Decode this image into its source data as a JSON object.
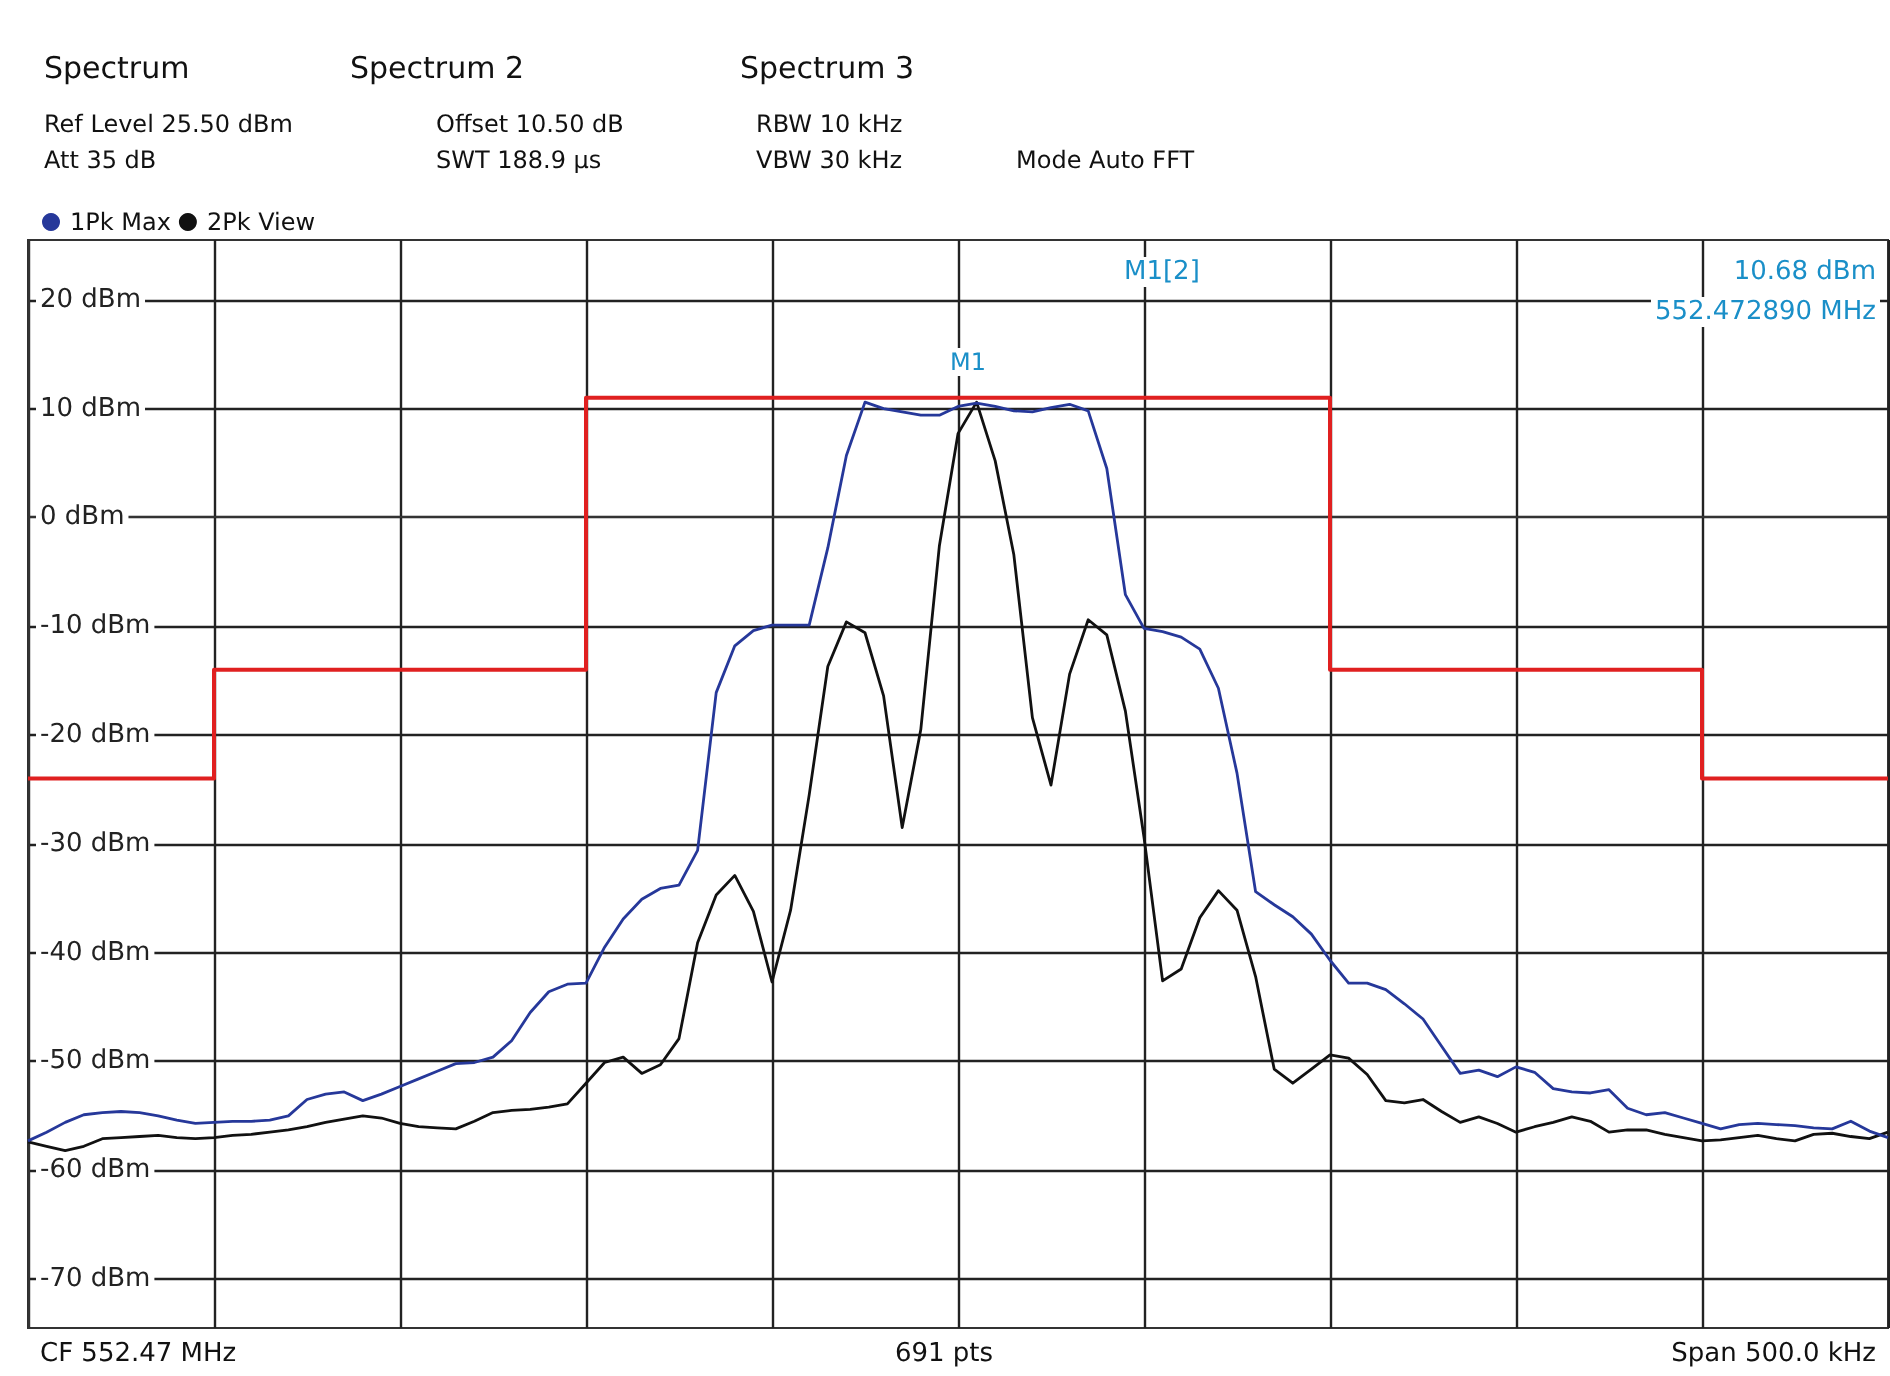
{
  "chart_data": {
    "type": "line",
    "annotations": [
      "Spectrum",
      "Spectrum 2",
      "Spectrum 3",
      "Ref Level 25.50 dBm",
      "Att 35 dB",
      "Offset 10.50 dB",
      "SWT 188.9 µs",
      "RBW 10 kHz",
      "VBW 30 kHz",
      "Mode Auto FFT",
      "M1[2]",
      "10.68 dBm",
      "552.472890 MHz",
      "CF 552.47 MHz",
      "691 pts",
      "Span 500.0 kHz",
      "M1"
    ],
    "categories": [
      null,
      null,
      null,
      null,
      null,
      null,
      null,
      null,
      null,
      null,
      null,
      null,
      null,
      null,
      null,
      null,
      null,
      null,
      null,
      null,
      null,
      null,
      null,
      null,
      null,
      null,
      null,
      null,
      null,
      null,
      null,
      null,
      null,
      null,
      null,
      null,
      null,
      null,
      null,
      null,
      null,
      null,
      null,
      null,
      null,
      null,
      null,
      null,
      null,
      null,
      null,
      null,
      null,
      null,
      null,
      null,
      null,
      null,
      null,
      null,
      null,
      null,
      null,
      null,
      null,
      null,
      null,
      null,
      null,
      null,
      null,
      null,
      null,
      null,
      null,
      null,
      null,
      null,
      null,
      null,
      null,
      null,
      null,
      null,
      null,
      null,
      null,
      null,
      null,
      null,
      null,
      null,
      null,
      null,
      null,
      null,
      null,
      null,
      null,
      null,
      null
    ],
    "ylim": [
      -74.5,
      25.5
    ],
    "yticks": [
      {
        "value": 20,
        "label": "20 dBm"
      },
      {
        "value": 10,
        "label": "10 dBm"
      },
      {
        "value": 0,
        "label": "0 dBm"
      },
      {
        "value": -10,
        "label": "-10 dBm"
      },
      {
        "value": -20,
        "label": "-20 dBm"
      },
      {
        "value": -30,
        "label": "-30 dBm"
      },
      {
        "value": -40,
        "label": "-40 dBm"
      },
      {
        "value": -50,
        "label": "-50 dBm"
      },
      {
        "value": -60,
        "label": "-60 dBm"
      },
      {
        "value": -70,
        "label": "-70 dBm"
      }
    ],
    "tick_labels": "y",
    "grid": true,
    "legend": "top left",
    "marker": "none",
    "line_style": "solid",
    "series": [
      {
        "type": "step",
        "color": "#e02020",
        "values": [
          -24,
          -24,
          -24,
          -24,
          -24,
          -24,
          -24,
          -24,
          -24,
          -24,
          -14,
          -14,
          -14,
          -14,
          -14,
          -14,
          -14,
          -14,
          -14,
          -14,
          -14,
          -14,
          -14,
          -14,
          -14,
          -14,
          -14,
          -14,
          -14,
          -14,
          11,
          11,
          11,
          11,
          11,
          11,
          11,
          11,
          11,
          11,
          11,
          11,
          11,
          11,
          11,
          11,
          11,
          11,
          11,
          11,
          11,
          11,
          11,
          11,
          11,
          11,
          11,
          11,
          11,
          11,
          11,
          11,
          11,
          11,
          11,
          11,
          11,
          11,
          11,
          11,
          -14,
          -14,
          -14,
          -14,
          -14,
          -14,
          -14,
          -14,
          -14,
          -14,
          -14,
          -14,
          -14,
          -14,
          -14,
          -14,
          -14,
          -14,
          -14,
          -14,
          -24,
          -24,
          -24,
          -24,
          -24,
          -24,
          -24,
          -24,
          -24,
          -24,
          -24
        ]
      },
      {
        "name": "2Pk View",
        "color": "#111111",
        "values": [
          -57.4,
          -57.8,
          -58.2,
          -57.8,
          -57.1,
          -57.0,
          -56.9,
          -56.8,
          -57.0,
          -57.1,
          -57.0,
          -56.8,
          -56.7,
          -56.5,
          -56.3,
          -56.0,
          -55.6,
          -55.3,
          -55.0,
          -55.2,
          -55.7,
          -56.0,
          -56.1,
          -56.2,
          -55.5,
          -54.7,
          -54.5,
          -54.4,
          -54.2,
          -53.9,
          -52.0,
          -50.1,
          -49.6,
          -51.1,
          -50.3,
          -47.9,
          -39.1,
          -34.7,
          -32.9,
          -36.2,
          -42.7,
          -36.1,
          -25.5,
          -13.7,
          -9.6,
          -10.6,
          -16.4,
          -28.5,
          -19.5,
          -2.6,
          7.7,
          10.6,
          5.2,
          -3.4,
          -18.4,
          -24.6,
          -14.4,
          -9.4,
          -10.8,
          -17.8,
          -29.4,
          -42.6,
          -41.5,
          -36.8,
          -34.3,
          -36.1,
          -42.2,
          -50.7,
          -52.0,
          -50.7,
          -49.4,
          -49.7,
          -51.2,
          -53.6,
          -53.8,
          -53.5,
          -54.6,
          -55.6,
          -55.1,
          -55.7,
          -56.5,
          -56.0,
          -55.6,
          -55.1,
          -55.5,
          -56.5,
          -56.3,
          -56.3,
          -56.7,
          -57.0,
          -57.3,
          -57.2,
          -57.0,
          -56.8,
          -57.1,
          -57.3,
          -56.7,
          -56.6,
          -56.9,
          -57.1,
          -56.5
        ]
      },
      {
        "name": "1Pk Max",
        "color": "#26389a",
        "values": [
          -57.3,
          -56.5,
          -55.6,
          -54.9,
          -54.7,
          -54.6,
          -54.7,
          -55.0,
          -55.4,
          -55.7,
          -55.6,
          -55.5,
          -55.5,
          -55.4,
          -55.0,
          -53.5,
          -53.0,
          -52.8,
          -53.6,
          -53.0,
          -52.3,
          -51.6,
          -50.9,
          -50.2,
          -50.1,
          -49.6,
          -48.1,
          -45.5,
          -43.6,
          -42.9,
          -42.8,
          -39.5,
          -36.9,
          -35.1,
          -34.1,
          -33.8,
          -30.6,
          -16.1,
          -11.8,
          -10.4,
          -9.9,
          -9.9,
          -9.9,
          -2.8,
          5.7,
          10.6,
          10.0,
          9.7,
          9.4,
          9.4,
          10.2,
          10.5,
          10.2,
          9.8,
          9.7,
          10.1,
          10.4,
          9.8,
          4.5,
          -7.1,
          -10.2,
          -10.5,
          -11.0,
          -12.1,
          -15.7,
          -23.5,
          -34.4,
          -35.6,
          -36.7,
          -38.3,
          -40.7,
          -42.8,
          -42.8,
          -43.4,
          -44.7,
          -46.1,
          -48.6,
          -51.1,
          -50.8,
          -51.4,
          -50.5,
          -51.0,
          -52.5,
          -52.8,
          -52.9,
          -52.6,
          -54.3,
          -54.9,
          -54.7,
          -55.2,
          -55.7,
          -56.2,
          -55.8,
          -55.7,
          -55.8,
          -55.9,
          -56.1,
          -56.2,
          -55.5,
          -56.4,
          -57.0
        ]
      }
    ]
  }
}
